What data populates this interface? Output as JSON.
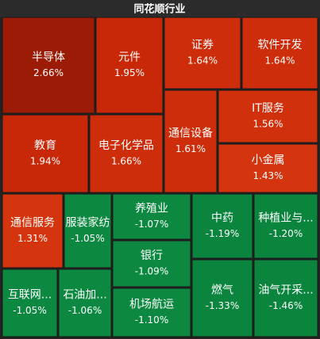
{
  "chart_data": {
    "type": "treemap",
    "title": "同花顺行业",
    "categories": [
      "半导体",
      "元件",
      "证券",
      "软件开发",
      "通信设备",
      "IT服务",
      "小金属",
      "教育",
      "电子化学品",
      "通信服务",
      "服装家纺",
      "养殖业",
      "银行",
      "机场航运",
      "中药",
      "种植业与...",
      "互联网...",
      "石油加...",
      "燃气",
      "油气开采..."
    ],
    "values": [
      2.66,
      1.95,
      1.64,
      1.64,
      1.61,
      1.56,
      1.43,
      1.94,
      1.66,
      1.31,
      -1.05,
      -1.07,
      -1.09,
      -1.1,
      -1.19,
      -1.2,
      -1.05,
      -1.06,
      -1.33,
      -1.46
    ],
    "value_labels": [
      "2.66%",
      "1.95%",
      "1.64%",
      "1.64%",
      "1.61%",
      "1.56%",
      "1.43%",
      "1.94%",
      "1.66%",
      "1.31%",
      "-1.05%",
      "-1.07%",
      "-1.09%",
      "-1.10%",
      "-1.19%",
      "-1.20%",
      "-1.05%",
      "-1.06%",
      "-1.33%",
      "-1.46%"
    ],
    "colors": [
      "#9c1b06",
      "#c82808",
      "#cd2d0a",
      "#cd2d0a",
      "#cd2d0a",
      "#d0300b",
      "#d5350e",
      "#c82808",
      "#cd2d0a",
      "#d5350e",
      "#0c8840",
      "#0c8840",
      "#0c8840",
      "#0c8840",
      "#0b843e",
      "#0b843e",
      "#0c8840",
      "#0c8840",
      "#0b843e",
      "#0b843e"
    ]
  }
}
